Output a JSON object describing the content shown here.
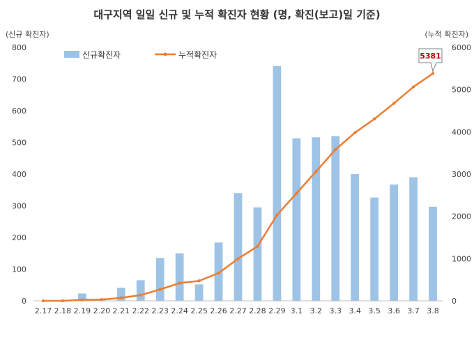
{
  "chart_data": {
    "type": "bar",
    "title": "대구지역 일일 신규 및 누적 확진자 현황 (명, 확진(보고)일 기준)",
    "left_axis_label": "(신규 확진자)",
    "right_axis_label": "(누적 확진자)",
    "categories": [
      "2.17",
      "2.18",
      "2.19",
      "2.20",
      "2.21",
      "2.22",
      "2.23",
      "2.24",
      "2.25",
      "2.26",
      "2.27",
      "2.28",
      "2.29",
      "3.1",
      "3.2",
      "3.3",
      "3.4",
      "3.5",
      "3.6",
      "3.7",
      "3.8"
    ],
    "ylim_left": [
      0,
      800
    ],
    "ylim_right": [
      0,
      6000
    ],
    "left_ticks": [
      "0",
      "100",
      "200",
      "300",
      "400",
      "500",
      "600",
      "700",
      "800"
    ],
    "right_ticks": [
      "0",
      "1000",
      "2000",
      "3000",
      "4000",
      "5000",
      "6000"
    ],
    "series": [
      {
        "name": "신규확진자",
        "type": "bar",
        "axis": "left",
        "color": "#9dc3e6",
        "values": [
          0,
          0,
          23,
          5,
          41,
          65,
          135,
          150,
          52,
          184,
          340,
          295,
          741,
          513,
          516,
          520,
          400,
          326,
          367,
          390,
          297
        ]
      },
      {
        "name": "누적확진자",
        "type": "line",
        "axis": "right",
        "color": "#ed7d31",
        "values": [
          1,
          1,
          24,
          29,
          70,
          135,
          270,
          420,
          472,
          656,
          996,
          1291,
          2032,
          2545,
          3061,
          3581,
          3981,
          4307,
          4674,
          5064,
          5381
        ]
      }
    ],
    "callout": {
      "value": "5381",
      "color": "#c00000"
    },
    "legend_position": "top-left",
    "grid": false
  }
}
